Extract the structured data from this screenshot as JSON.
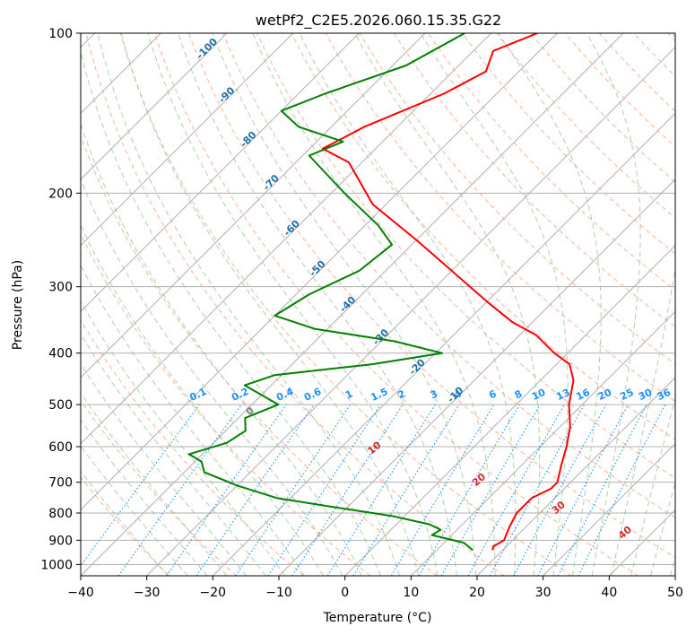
{
  "chart_data": {
    "type": "skew-t",
    "title": "wetPf2_C2E5.2026.060.15.35.G22",
    "xlabel": "Temperature (°C)",
    "ylabel": "Pressure (hPa)",
    "xlim": [
      -40,
      50
    ],
    "ylim": [
      1050,
      100
    ],
    "x_ticks": [
      -40,
      -30,
      -20,
      -10,
      0,
      10,
      20,
      30,
      40,
      50
    ],
    "y_ticks": [
      100,
      200,
      300,
      400,
      500,
      600,
      700,
      800,
      900,
      1000
    ],
    "isotherm_labels": [
      -100,
      -90,
      -80,
      -70,
      -60,
      -50,
      -40,
      -30,
      -20,
      -10
    ],
    "mixing_ratio_labels": [
      "0.1",
      "0.2",
      "0.4",
      "0.6",
      "1",
      "1.5",
      "2",
      "3",
      "4",
      "6",
      "8",
      "10",
      "13",
      "16",
      "20",
      "25",
      "30",
      "36"
    ],
    "moist_adiabat_labels": [
      0,
      10,
      20,
      30,
      40
    ],
    "series": [
      {
        "name": "temperature",
        "color": "#ff0000",
        "points": [
          [
            18.5,
            940
          ],
          [
            18.0,
            925
          ],
          [
            18.7,
            900
          ],
          [
            17.5,
            850
          ],
          [
            16.5,
            800
          ],
          [
            16.5,
            750
          ],
          [
            18.0,
            720
          ],
          [
            18.0,
            700
          ],
          [
            16.0,
            650
          ],
          [
            14.0,
            600
          ],
          [
            11.5,
            550
          ],
          [
            8.0,
            500
          ],
          [
            5.0,
            450
          ],
          [
            2.0,
            420
          ],
          [
            -2.0,
            400
          ],
          [
            -7.5,
            370
          ],
          [
            -13.0,
            350
          ],
          [
            -20.0,
            320
          ],
          [
            -30.0,
            280
          ],
          [
            -40.0,
            245
          ],
          [
            -52.0,
            210
          ],
          [
            -62.0,
            175
          ],
          [
            -68.0,
            165
          ],
          [
            -65.0,
            150
          ],
          [
            -58.0,
            130
          ],
          [
            -55.0,
            118
          ],
          [
            -57.0,
            108
          ],
          [
            -53.0,
            100
          ]
        ]
      },
      {
        "name": "dewpoint",
        "color": "#008000",
        "points": [
          [
            15.5,
            940
          ],
          [
            13.0,
            910
          ],
          [
            7.0,
            880
          ],
          [
            7.5,
            860
          ],
          [
            5.0,
            840
          ],
          [
            -2.0,
            810
          ],
          [
            -12.0,
            780
          ],
          [
            -22.0,
            750
          ],
          [
            -30.0,
            710
          ],
          [
            -37.0,
            670
          ],
          [
            -39.0,
            640
          ],
          [
            -42.0,
            620
          ],
          [
            -38.0,
            590
          ],
          [
            -37.0,
            560
          ],
          [
            -39.0,
            530
          ],
          [
            -36.0,
            500
          ],
          [
            -44.0,
            460
          ],
          [
            -41.0,
            440
          ],
          [
            -28.0,
            420
          ],
          [
            -19.0,
            400
          ],
          [
            -28.0,
            380
          ],
          [
            -42.0,
            360
          ],
          [
            -50.0,
            340
          ],
          [
            -48.0,
            310
          ],
          [
            -44.0,
            280
          ],
          [
            -43.0,
            250
          ],
          [
            -48.0,
            230
          ],
          [
            -58.0,
            200
          ],
          [
            -69.0,
            170
          ],
          [
            -66.0,
            160
          ],
          [
            -75.0,
            150
          ],
          [
            -80.0,
            140
          ],
          [
            -76.0,
            130
          ],
          [
            -68.0,
            115
          ],
          [
            -64.0,
            100
          ]
        ]
      }
    ],
    "colors": {
      "grid": "#b0b0b0",
      "dry_adiabat": "#ffa07a",
      "moist_adiabat": "#8fbc8f",
      "mixing_ratio": "#1e90ff",
      "isotherm_label": "#1f6fa8",
      "moist_label": "#d62728",
      "zero_label": "#7f7f7f",
      "ice": "#d2b48c"
    }
  }
}
